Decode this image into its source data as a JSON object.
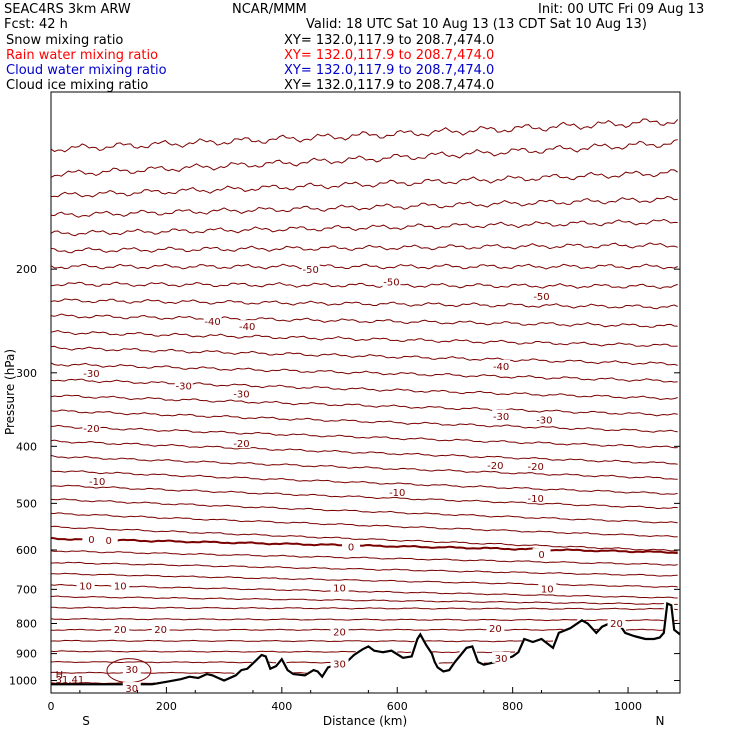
{
  "header": {
    "model": "SEAC4RS 3km ARW",
    "org": "NCAR/MMM",
    "init": "Init: 00 UTC Fri 09 Aug 13",
    "fcst": "Fcst:    42 h",
    "valid": "Valid: 18 UTC Sat 10 Aug 13 (13 CDT Sat 10 Aug 13)",
    "fields": [
      {
        "name": "Snow mixing ratio",
        "xy": "XY= 132.0,117.9 to 208.7,474.0",
        "color": "#000000"
      },
      {
        "name": "Rain water mixing ratio",
        "xy": "XY= 132.0,117.9 to 208.7,474.0",
        "color": "#ff0000"
      },
      {
        "name": "Cloud water mixing ratio",
        "xy": "XY= 132.0,117.9 to 208.7,474.0",
        "color": "#0000cc"
      },
      {
        "name": "Cloud ice mixing ratio",
        "xy": "XY= 132.0,117.9 to 208.7,474.0",
        "color": "#000000"
      }
    ]
  },
  "chart_data": {
    "type": "line",
    "title": "",
    "xlabel": "Distance (km)",
    "ylabel": "Pressure (hPa)",
    "xlim": [
      0,
      1090
    ],
    "ylim": [
      1050,
      100
    ],
    "y_scale": "log",
    "x_ticks": [
      0,
      200,
      400,
      600,
      800,
      1000
    ],
    "y_ticks": [
      200,
      300,
      400,
      500,
      600,
      700,
      800,
      900,
      1000
    ],
    "x_end_labels": {
      "left": "S",
      "right": "N"
    },
    "isotherm_color": "#7a0000",
    "terrain_color": "#000000",
    "isotherm_labels": [
      {
        "label": "-50",
        "x": 450,
        "p": 200
      },
      {
        "label": "-50",
        "x": 590,
        "p": 210
      },
      {
        "label": "-50",
        "x": 850,
        "p": 222
      },
      {
        "label": "-40",
        "x": 280,
        "p": 245
      },
      {
        "label": "-40",
        "x": 340,
        "p": 250
      },
      {
        "label": "-40",
        "x": 780,
        "p": 292
      },
      {
        "label": "-30",
        "x": 70,
        "p": 300
      },
      {
        "label": "-30",
        "x": 230,
        "p": 315
      },
      {
        "label": "-30",
        "x": 330,
        "p": 325
      },
      {
        "label": "-30",
        "x": 780,
        "p": 355
      },
      {
        "label": "-30",
        "x": 855,
        "p": 360
      },
      {
        "label": "-20",
        "x": 70,
        "p": 372
      },
      {
        "label": "-20",
        "x": 330,
        "p": 395
      },
      {
        "label": "-20",
        "x": 770,
        "p": 430
      },
      {
        "label": "-20",
        "x": 840,
        "p": 432
      },
      {
        "label": "-10",
        "x": 80,
        "p": 458
      },
      {
        "label": "-10",
        "x": 600,
        "p": 478
      },
      {
        "label": "-10",
        "x": 840,
        "p": 490
      },
      {
        "label": "0",
        "x": 70,
        "p": 575
      },
      {
        "label": "0",
        "x": 100,
        "p": 577
      },
      {
        "label": "0",
        "x": 520,
        "p": 592
      },
      {
        "label": "0",
        "x": 850,
        "p": 610
      },
      {
        "label": "10",
        "x": 60,
        "p": 690
      },
      {
        "label": "10",
        "x": 120,
        "p": 690
      },
      {
        "label": "10",
        "x": 500,
        "p": 695
      },
      {
        "label": "10",
        "x": 860,
        "p": 698
      },
      {
        "label": "20",
        "x": 120,
        "p": 818
      },
      {
        "label": "20",
        "x": 190,
        "p": 818
      },
      {
        "label": "20",
        "x": 500,
        "p": 825
      },
      {
        "label": "20",
        "x": 770,
        "p": 815
      },
      {
        "label": "20",
        "x": 980,
        "p": 798
      },
      {
        "label": "30",
        "x": 140,
        "p": 955
      },
      {
        "label": "30",
        "x": 500,
        "p": 935
      },
      {
        "label": "30",
        "x": 780,
        "p": 915
      },
      {
        "label": "30",
        "x": 140,
        "p": 1030
      }
    ],
    "annotations": [
      {
        "text": "H",
        "x": 15,
        "p": 990
      },
      {
        "text": "31.41",
        "x": 15,
        "p": 1010
      }
    ],
    "terrain": {
      "x": [
        0,
        90,
        175,
        200,
        225,
        240,
        255,
        270,
        280,
        290,
        300,
        320,
        330,
        340,
        355,
        365,
        372,
        380,
        390,
        400,
        410,
        420,
        440,
        455,
        462,
        470,
        480,
        495,
        510,
        525,
        540,
        550,
        560,
        575,
        590,
        610,
        625,
        635,
        640,
        650,
        660,
        665,
        670,
        680,
        690,
        700,
        710,
        720,
        730,
        740,
        750,
        760,
        780,
        800,
        810,
        820,
        835,
        850,
        870,
        880,
        900,
        920,
        930,
        945,
        955,
        980,
        995,
        1010,
        1030,
        1045,
        1055,
        1062,
        1068,
        1075,
        1080,
        1090
      ],
      "p": [
        1015,
        1015,
        1015,
        1005,
        995,
        985,
        990,
        975,
        980,
        990,
        1000,
        980,
        960,
        955,
        925,
        905,
        910,
        955,
        945,
        920,
        960,
        975,
        980,
        960,
        965,
        985,
        950,
        940,
        935,
        905,
        885,
        875,
        890,
        895,
        890,
        915,
        910,
        850,
        835,
        870,
        900,
        930,
        950,
        965,
        960,
        930,
        905,
        880,
        875,
        930,
        940,
        935,
        925,
        910,
        895,
        850,
        860,
        850,
        880,
        830,
        815,
        790,
        800,
        830,
        810,
        790,
        830,
        840,
        850,
        850,
        845,
        830,
        740,
        745,
        820,
        835
      ]
    }
  }
}
